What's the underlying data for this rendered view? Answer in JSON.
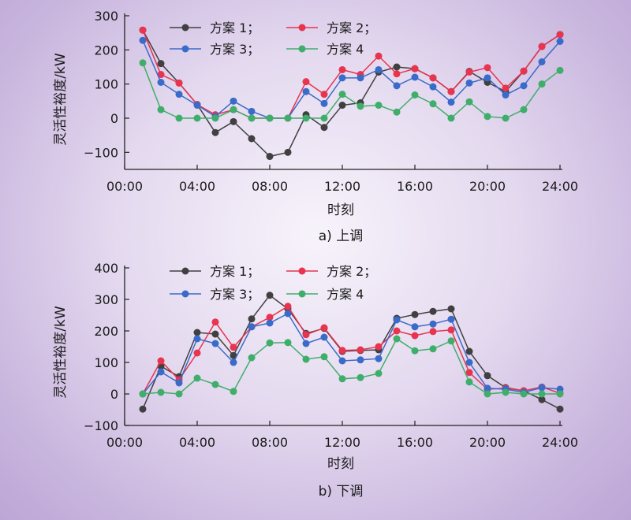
{
  "colors": {
    "s1": "#404040",
    "s2": "#e8344e",
    "s3": "#3a6bc9",
    "s4": "#3fae6a"
  },
  "chart_data": [
    {
      "type": "line",
      "caption": "a) 上调",
      "xlabel": "时刻",
      "ylabel": "灵活性裕度/kW",
      "xlim": [
        0,
        24
      ],
      "ylim": [
        -150,
        300
      ],
      "yticks": [
        -100,
        0,
        100,
        200,
        300
      ],
      "xticks": [
        "00:00",
        "04:00",
        "08:00",
        "12:00",
        "16:00",
        "20:00",
        "24:00"
      ],
      "x": [
        1,
        2,
        3,
        4,
        5,
        6,
        7,
        8,
        9,
        10,
        11,
        12,
        13,
        14,
        15,
        16,
        17,
        18,
        19,
        20,
        21,
        22,
        23,
        24
      ],
      "legend": [
        "方案 1；",
        "方案 2；",
        "方案 3；",
        "方案 4"
      ],
      "series": [
        {
          "name": "方案 1",
          "values": [
            258,
            160,
            103,
            40,
            -42,
            -10,
            -60,
            -112,
            -100,
            10,
            -27,
            38,
            45,
            135,
            150,
            145,
            118,
            78,
            137,
            105,
            78,
            138,
            210,
            245
          ]
        },
        {
          "name": "方案 2",
          "values": [
            258,
            128,
            103,
            40,
            10,
            25,
            0,
            0,
            0,
            107,
            70,
            142,
            128,
            182,
            130,
            145,
            118,
            78,
            135,
            148,
            88,
            138,
            210,
            245
          ]
        },
        {
          "name": "方案 3",
          "values": [
            228,
            105,
            70,
            38,
            5,
            50,
            20,
            0,
            0,
            78,
            43,
            118,
            118,
            142,
            95,
            120,
            92,
            47,
            103,
            118,
            68,
            95,
            165,
            225
          ]
        },
        {
          "name": "方案 4",
          "values": [
            162,
            25,
            0,
            0,
            0,
            25,
            0,
            0,
            0,
            0,
            0,
            70,
            35,
            38,
            18,
            68,
            42,
            0,
            48,
            5,
            0,
            25,
            100,
            140
          ]
        }
      ]
    },
    {
      "type": "line",
      "caption": "b) 下调",
      "xlabel": "时刻",
      "ylabel": "灵活性裕度/kW",
      "xlim": [
        0,
        24
      ],
      "ylim": [
        -100,
        400
      ],
      "yticks": [
        -100,
        0,
        100,
        200,
        300,
        400
      ],
      "xticks": [
        "00:00",
        "04:00",
        "08:00",
        "12:00",
        "16:00",
        "20:00",
        "24:00"
      ],
      "x": [
        1,
        2,
        3,
        4,
        5,
        6,
        7,
        8,
        9,
        10,
        11,
        12,
        13,
        14,
        15,
        16,
        17,
        18,
        19,
        20,
        21,
        22,
        23,
        24
      ],
      "legend": [
        "方案 1；",
        "方案 2；",
        "方案 3；",
        "方案 4"
      ],
      "series": [
        {
          "name": "方案 1",
          "values": [
            -48,
            88,
            55,
            195,
            190,
            122,
            238,
            313,
            270,
            192,
            208,
            135,
            138,
            140,
            240,
            252,
            262,
            270,
            135,
            58,
            20,
            10,
            -18,
            -48
          ]
        },
        {
          "name": "方案 2",
          "values": [
            0,
            105,
            45,
            130,
            228,
            148,
            213,
            243,
            278,
            188,
            210,
            138,
            140,
            150,
            200,
            185,
            198,
            203,
            68,
            15,
            18,
            10,
            22,
            2
          ]
        },
        {
          "name": "方案 3",
          "values": [
            0,
            70,
            35,
            175,
            160,
            100,
            213,
            225,
            255,
            160,
            180,
            105,
            108,
            112,
            235,
            213,
            222,
            237,
            100,
            18,
            15,
            5,
            20,
            15
          ]
        },
        {
          "name": "方案 4",
          "values": [
            0,
            5,
            0,
            50,
            30,
            8,
            115,
            162,
            163,
            110,
            118,
            48,
            52,
            65,
            175,
            137,
            143,
            168,
            38,
            0,
            5,
            0,
            0,
            0
          ]
        }
      ]
    }
  ]
}
